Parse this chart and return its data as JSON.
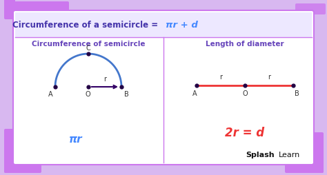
{
  "bg_outer": "#d8b8f0",
  "bg_white": "#ffffff",
  "header_bg": "#ede0ff",
  "title_text": "Circumference of a semicircle = ",
  "title_formula": "πr + d",
  "title_color": "#4433aa",
  "formula_color": "#4488ff",
  "left_title": "Circumference of semicircle",
  "right_title": "Length of diameter",
  "subtitle_color": "#6644bb",
  "pi_r_text": "πr",
  "two_r_text": "2r = d",
  "left_formula_color": "#4488ff",
  "right_formula_color": "#ee3333",
  "arc_color": "#4477cc",
  "radius_arrow_color": "#330066",
  "diameter_line_color": "#ee3333",
  "dot_color": "#220044",
  "splash_bold": "Splash",
  "splash_normal": "Learn",
  "border_color": "#cc77ee",
  "divider_color": "#cc77ee"
}
